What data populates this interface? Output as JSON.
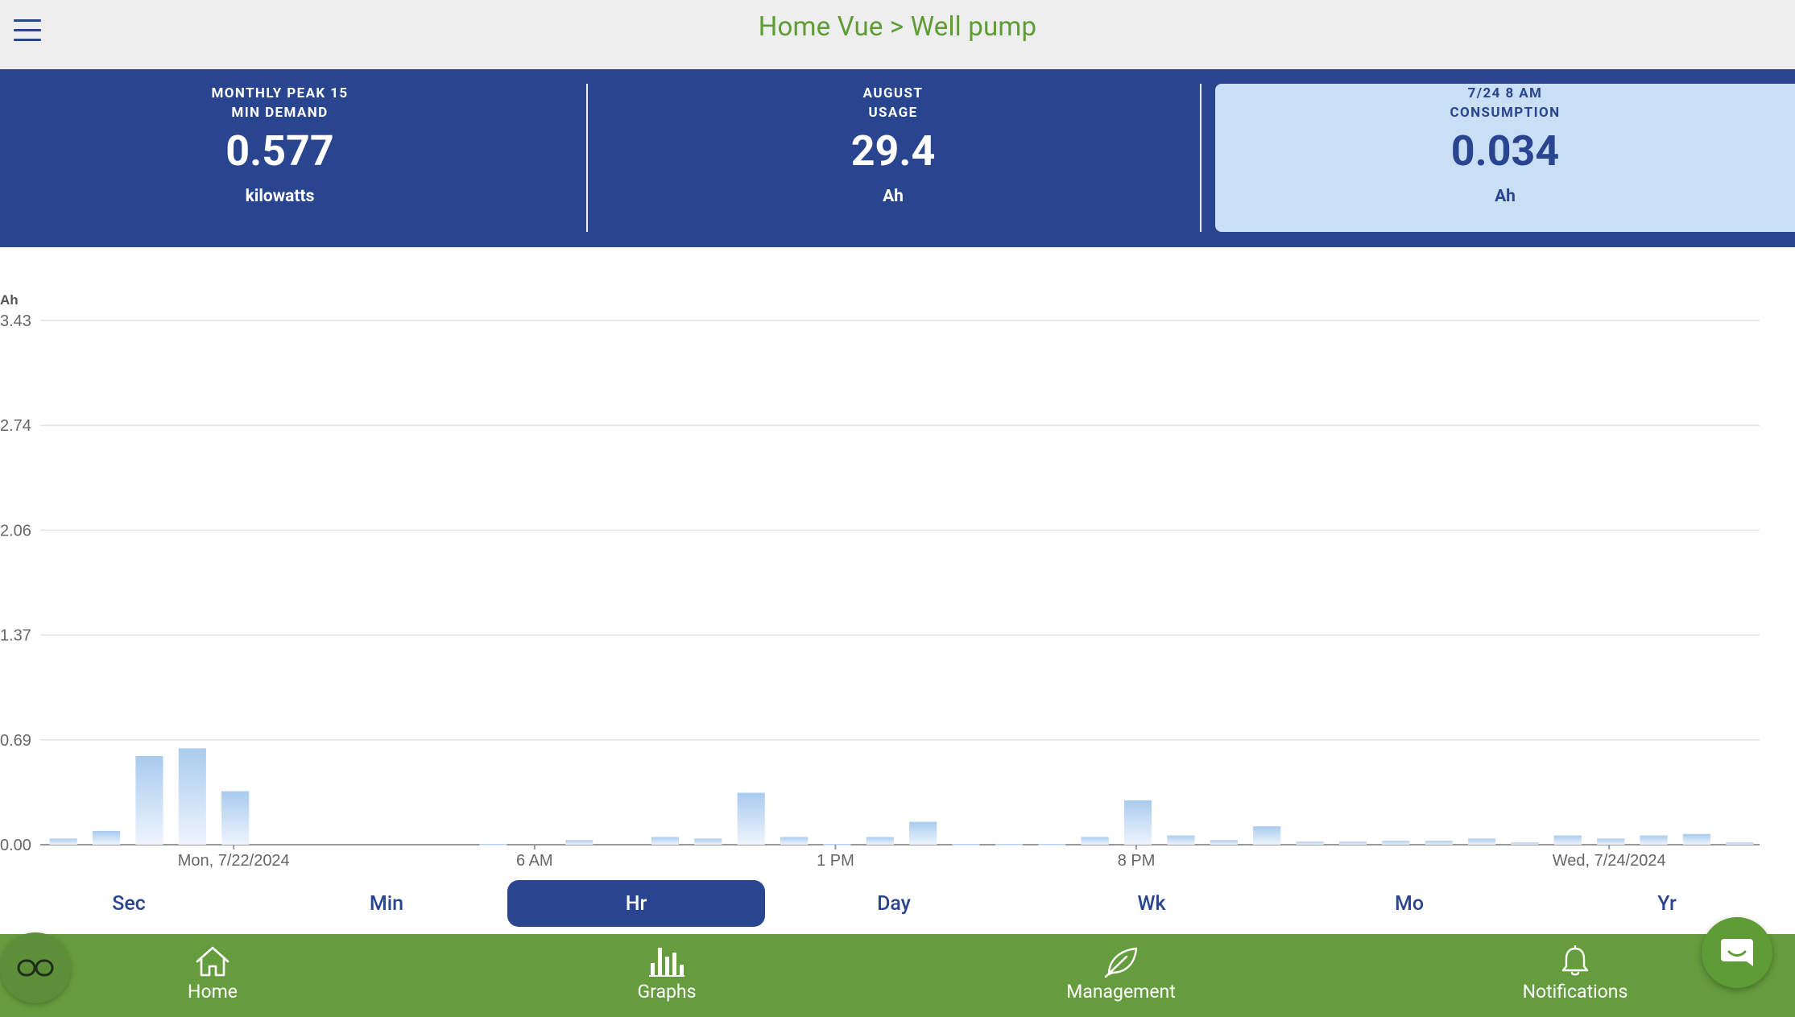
{
  "header": {
    "title": "Home Vue > Well pump",
    "menu_icon": "hamburger-icon"
  },
  "stats": [
    {
      "label_line1": "MONTHLY PEAK 15",
      "label_line2": "MIN DEMAND",
      "value": "0.577",
      "unit": "kilowatts"
    },
    {
      "label_line1": "AUGUST",
      "label_line2": "USAGE",
      "value": "29.4",
      "unit": "Ah"
    },
    {
      "label_line1": "7/24 8 AM",
      "label_line2": "CONSUMPTION",
      "value": "0.034",
      "unit": "Ah"
    }
  ],
  "chart_data": {
    "type": "bar",
    "ylabel": "Ah",
    "ylim": [
      0,
      3.43
    ],
    "yticks": [
      "0.00",
      "0.69",
      "1.37",
      "2.06",
      "2.74",
      "3.43"
    ],
    "xtick_labels": [
      "Mon, 7/22/2024",
      "6 AM",
      "1 PM",
      "8 PM",
      "Wed, 7/24/2024"
    ],
    "xtick_hour_index": [
      4,
      11,
      18,
      25,
      36
    ],
    "grid": true,
    "values": [
      0.04,
      0.09,
      0.58,
      0.63,
      0.35,
      0,
      0,
      0,
      0,
      0,
      0.005,
      0,
      0.03,
      0,
      0.05,
      0.04,
      0.34,
      0.05,
      0.005,
      0.05,
      0.15,
      0.005,
      0.005,
      0.005,
      0.05,
      0.29,
      0.06,
      0.03,
      0.12,
      0.02,
      0.02,
      0.025,
      0.025,
      0.04,
      0.015,
      0.06,
      0.04,
      0.06,
      0.07,
      0.015
    ]
  },
  "ranges": [
    {
      "label": "Sec",
      "active": false
    },
    {
      "label": "Min",
      "active": false
    },
    {
      "label": "Hr",
      "active": true
    },
    {
      "label": "Day",
      "active": false
    },
    {
      "label": "Wk",
      "active": false
    },
    {
      "label": "Mo",
      "active": false
    },
    {
      "label": "Yr",
      "active": false
    }
  ],
  "nav": [
    {
      "label": "Home",
      "icon": "home-icon"
    },
    {
      "label": "Graphs",
      "icon": "bar-chart-icon"
    },
    {
      "label": "Management",
      "icon": "leaf-icon"
    },
    {
      "label": "Notifications",
      "icon": "bell-icon"
    }
  ],
  "colors": {
    "brand_blue": "#2a4590",
    "brand_green": "#659c3d",
    "title_green": "#5e9c35",
    "highlight_card": "#c8dff5",
    "bar_top": "#a9cbee",
    "bar_bottom": "#eaf3fc"
  },
  "fabs": {
    "left_icon": "glasses-icon",
    "right_icon": "chat-icon"
  }
}
